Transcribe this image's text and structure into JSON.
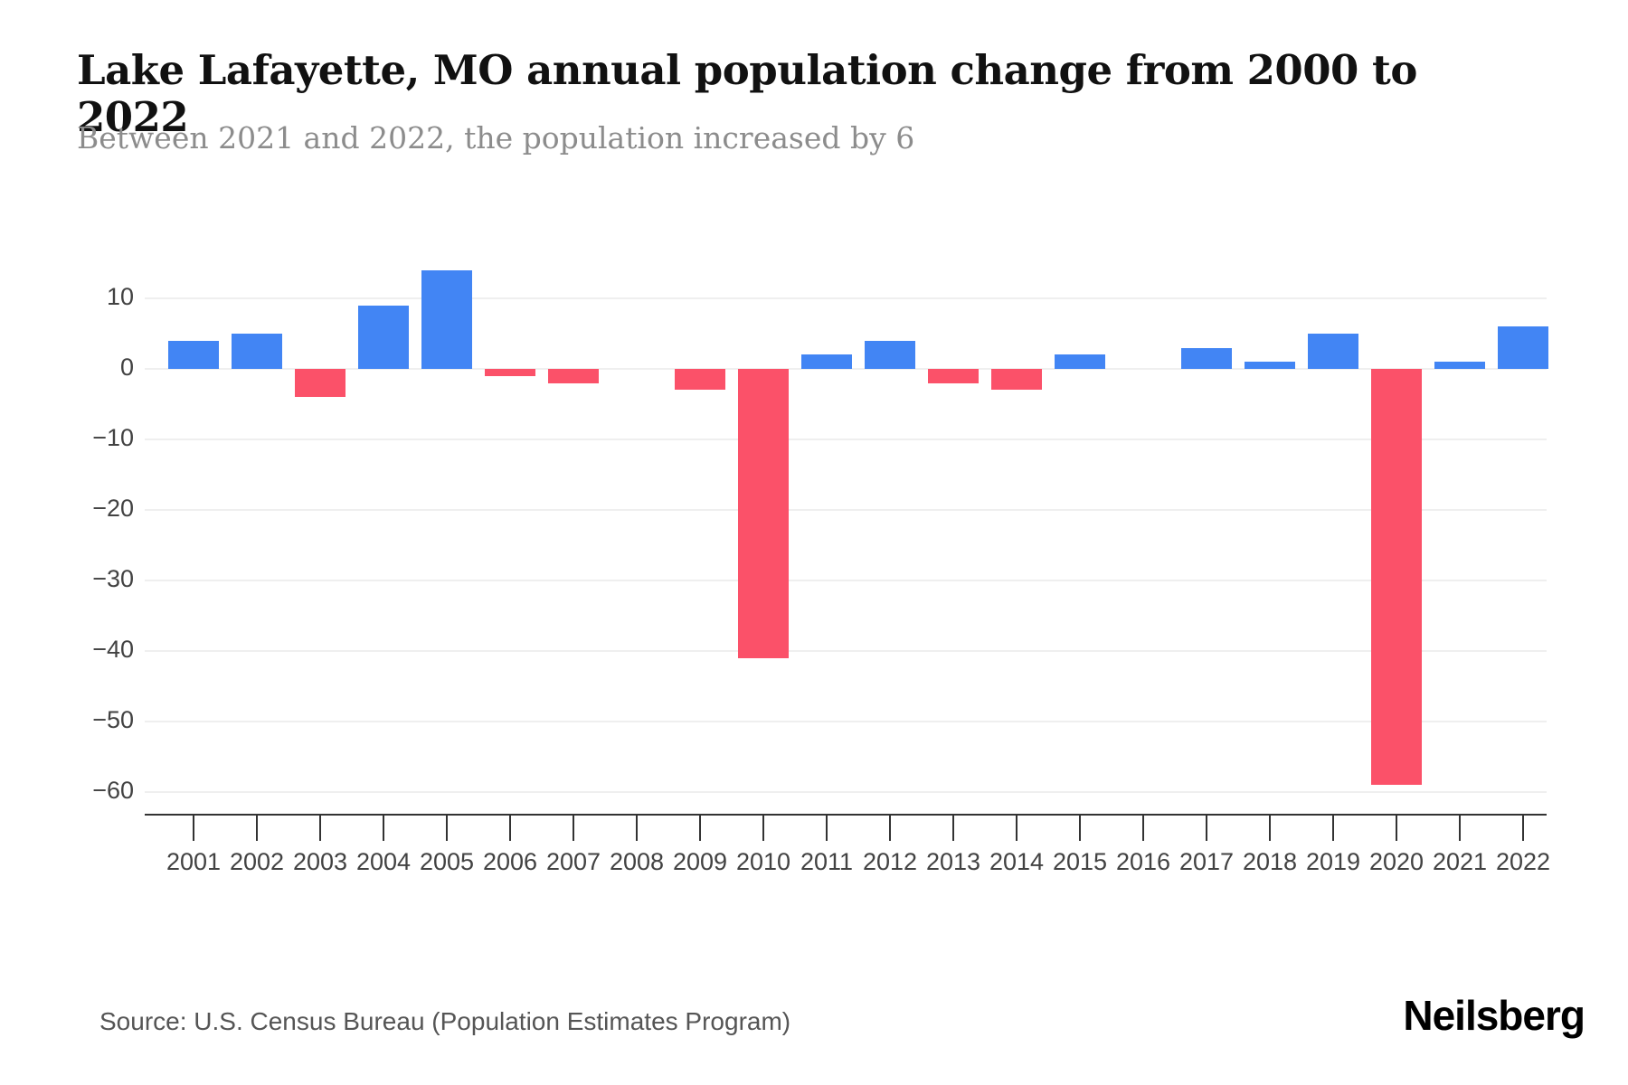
{
  "page": {
    "title": "Lake Lafayette, MO annual population change from 2000 to 2022",
    "subtitle": "Between 2021 and 2022, the population increased by 6",
    "source": "Source: U.S. Census Bureau (Population Estimates Program)",
    "brand": "Neilsberg"
  },
  "chart_data": {
    "type": "bar",
    "title": "Lake Lafayette, MO annual population change from 2000 to 2022",
    "subtitle": "Between 2021 and 2022, the population increased by 6",
    "xlabel": "",
    "ylabel": "",
    "categories": [
      "2001",
      "2002",
      "2003",
      "2004",
      "2005",
      "2006",
      "2007",
      "2008",
      "2009",
      "2010",
      "2011",
      "2012",
      "2013",
      "2014",
      "2015",
      "2016",
      "2017",
      "2018",
      "2019",
      "2020",
      "2021",
      "2022"
    ],
    "values": [
      4,
      5,
      -4,
      9,
      14,
      -1,
      -2,
      0,
      -3,
      -41,
      2,
      4,
      -2,
      -3,
      2,
      0,
      3,
      1,
      5,
      -59,
      1,
      6
    ],
    "series_name": "Annual population change",
    "y_ticks": [
      10,
      0,
      -10,
      -20,
      -30,
      -40,
      -50,
      -60
    ],
    "ylim": [
      -62,
      15
    ],
    "grid": "horizontal",
    "legend_position": "none",
    "colors": {
      "positive_bar": "#4285F4",
      "negative_bar": "#FB5169",
      "gridline": "#EFEFEF",
      "axis_line": "#333333",
      "tick_label": "#424242",
      "title_text": "#111111",
      "subtitle_text": "#8C8C8C",
      "source_text": "#555555"
    }
  }
}
